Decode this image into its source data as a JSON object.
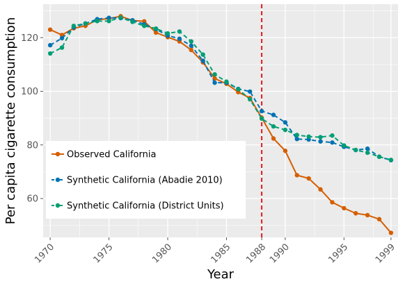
{
  "chart_data": {
    "type": "line",
    "xlabel": "Year",
    "ylabel": "Per capita cigarette consumption",
    "xlim": [
      1969.4,
      1999.6
    ],
    "ylim": [
      45.5,
      132.5
    ],
    "x_ticks": [
      1970,
      1975,
      1980,
      1985,
      1988,
      1990,
      1995,
      1999
    ],
    "y_ticks": [
      60,
      80,
      100,
      120
    ],
    "x_tick_labels": [
      "1970",
      "1975",
      "1980",
      "1985",
      "1988",
      "1990",
      "1995",
      "1999"
    ],
    "y_tick_labels": [
      "60",
      "80",
      "100",
      "120"
    ],
    "vline": {
      "x": 1988,
      "color": "#e41a1c",
      "style": "dashed"
    },
    "grid": true,
    "background": "#ebebeb",
    "legend_position": "bottom-left",
    "x": [
      1970,
      1971,
      1972,
      1973,
      1974,
      1975,
      1976,
      1977,
      1978,
      1979,
      1980,
      1981,
      1982,
      1983,
      1984,
      1985,
      1986,
      1987,
      1988,
      1989,
      1990,
      1991,
      1992,
      1993,
      1994,
      1995,
      1996,
      1997,
      1998,
      1999
    ],
    "series": [
      {
        "name": "Observed California",
        "color": "#d55e00",
        "dash": "solid",
        "values": [
          123.0,
          121.0,
          123.5,
          124.4,
          126.7,
          127.1,
          128.0,
          126.4,
          126.1,
          121.9,
          120.2,
          118.6,
          115.4,
          110.8,
          104.8,
          102.8,
          99.7,
          97.5,
          90.1,
          82.4,
          77.8,
          68.7,
          67.5,
          63.4,
          58.6,
          56.4,
          54.5,
          53.8,
          52.3,
          47.2
        ]
      },
      {
        "name": "Synthetic California (Abadie 2010)",
        "color": "#0072b2",
        "dash": "dashed",
        "values": [
          117.2,
          119.8,
          123.8,
          125.3,
          126.9,
          127.4,
          127.3,
          126.5,
          125.0,
          123.2,
          120.8,
          119.6,
          117.0,
          111.4,
          103.2,
          103.2,
          100.9,
          99.9,
          92.6,
          91.2,
          88.4,
          82.2,
          82.0,
          81.3,
          80.9,
          79.3,
          78.1,
          78.6,
          75.6,
          74.3
        ]
      },
      {
        "name": "Synthetic California (District Units)",
        "color": "#009e73",
        "dash": "dashed",
        "values": [
          114.1,
          116.3,
          124.4,
          125.3,
          126.2,
          126.2,
          127.5,
          125.9,
          124.4,
          123.4,
          121.6,
          122.3,
          118.6,
          113.7,
          106.3,
          103.6,
          100.8,
          97.0,
          89.8,
          86.9,
          85.6,
          83.7,
          83.1,
          82.9,
          83.5,
          79.8,
          78.1,
          77.1,
          75.6,
          74.4
        ]
      }
    ]
  }
}
